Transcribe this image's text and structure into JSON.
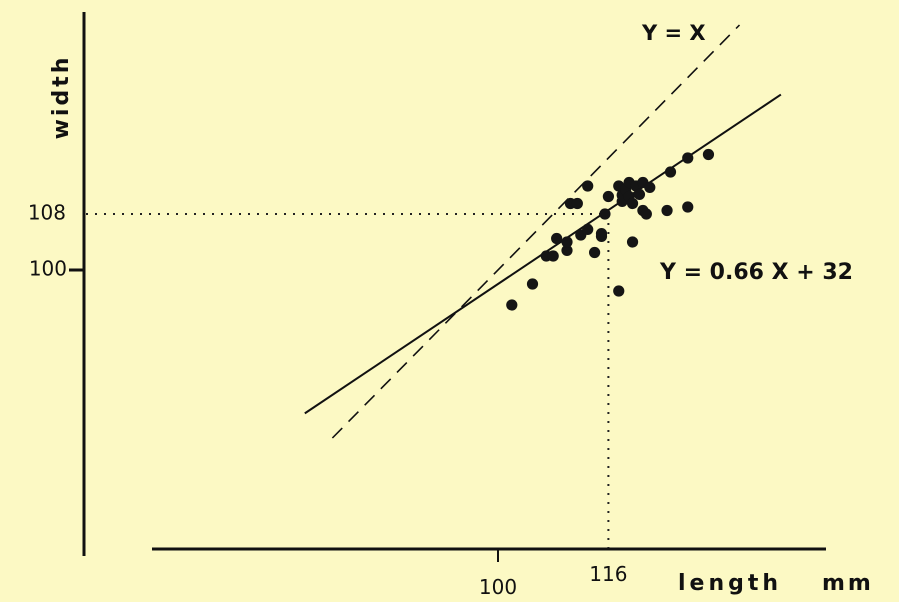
{
  "chart_data": {
    "type": "scatter",
    "title": "",
    "xlabel": "length",
    "xunit": "mm",
    "ylabel": "width",
    "x_ticks": [
      100,
      116
    ],
    "y_ticks": [
      100,
      108
    ],
    "xlim": [
      50,
      158
    ],
    "ylim": [
      60,
      140
    ],
    "grid": false,
    "reference_point": {
      "x": 116,
      "y": 108
    },
    "series": [
      {
        "points": [
          {
            "x": 102,
            "y": 95
          },
          {
            "x": 105,
            "y": 98
          },
          {
            "x": 107,
            "y": 102
          },
          {
            "x": 108,
            "y": 102
          },
          {
            "x": 108.5,
            "y": 104.5
          },
          {
            "x": 110,
            "y": 102.8
          },
          {
            "x": 110,
            "y": 104
          },
          {
            "x": 110.5,
            "y": 109.5
          },
          {
            "x": 111.5,
            "y": 109.5
          },
          {
            "x": 112,
            "y": 105
          },
          {
            "x": 113,
            "y": 105.8
          },
          {
            "x": 113,
            "y": 112
          },
          {
            "x": 114,
            "y": 102.5
          },
          {
            "x": 115,
            "y": 104.8
          },
          {
            "x": 115,
            "y": 105.2
          },
          {
            "x": 115.5,
            "y": 108
          },
          {
            "x": 116,
            "y": 110.5
          },
          {
            "x": 117.5,
            "y": 97
          },
          {
            "x": 117.5,
            "y": 112
          },
          {
            "x": 118,
            "y": 110.7
          },
          {
            "x": 118,
            "y": 109.8
          },
          {
            "x": 118.5,
            "y": 111.5
          },
          {
            "x": 119,
            "y": 110.5
          },
          {
            "x": 119,
            "y": 112.5
          },
          {
            "x": 119.5,
            "y": 104
          },
          {
            "x": 119.5,
            "y": 109.5
          },
          {
            "x": 120,
            "y": 112
          },
          {
            "x": 120.5,
            "y": 110.8
          },
          {
            "x": 121,
            "y": 112.5
          },
          {
            "x": 121,
            "y": 108.5
          },
          {
            "x": 121.5,
            "y": 108
          },
          {
            "x": 122,
            "y": 111.8
          },
          {
            "x": 124.5,
            "y": 108.5
          },
          {
            "x": 125,
            "y": 114
          },
          {
            "x": 127.5,
            "y": 109
          },
          {
            "x": 127.5,
            "y": 116
          },
          {
            "x": 130.5,
            "y": 116.5
          }
        ]
      }
    ],
    "lines": [
      {
        "label": "Y = X",
        "style": "dashed",
        "slope": 1,
        "intercept": 0,
        "x_range": [
          76,
          135
        ]
      },
      {
        "label": "Y = 0.66 X + 32",
        "style": "solid",
        "slope": 0.66,
        "intercept": 32,
        "x_range": [
          72,
          141
        ]
      }
    ]
  }
}
